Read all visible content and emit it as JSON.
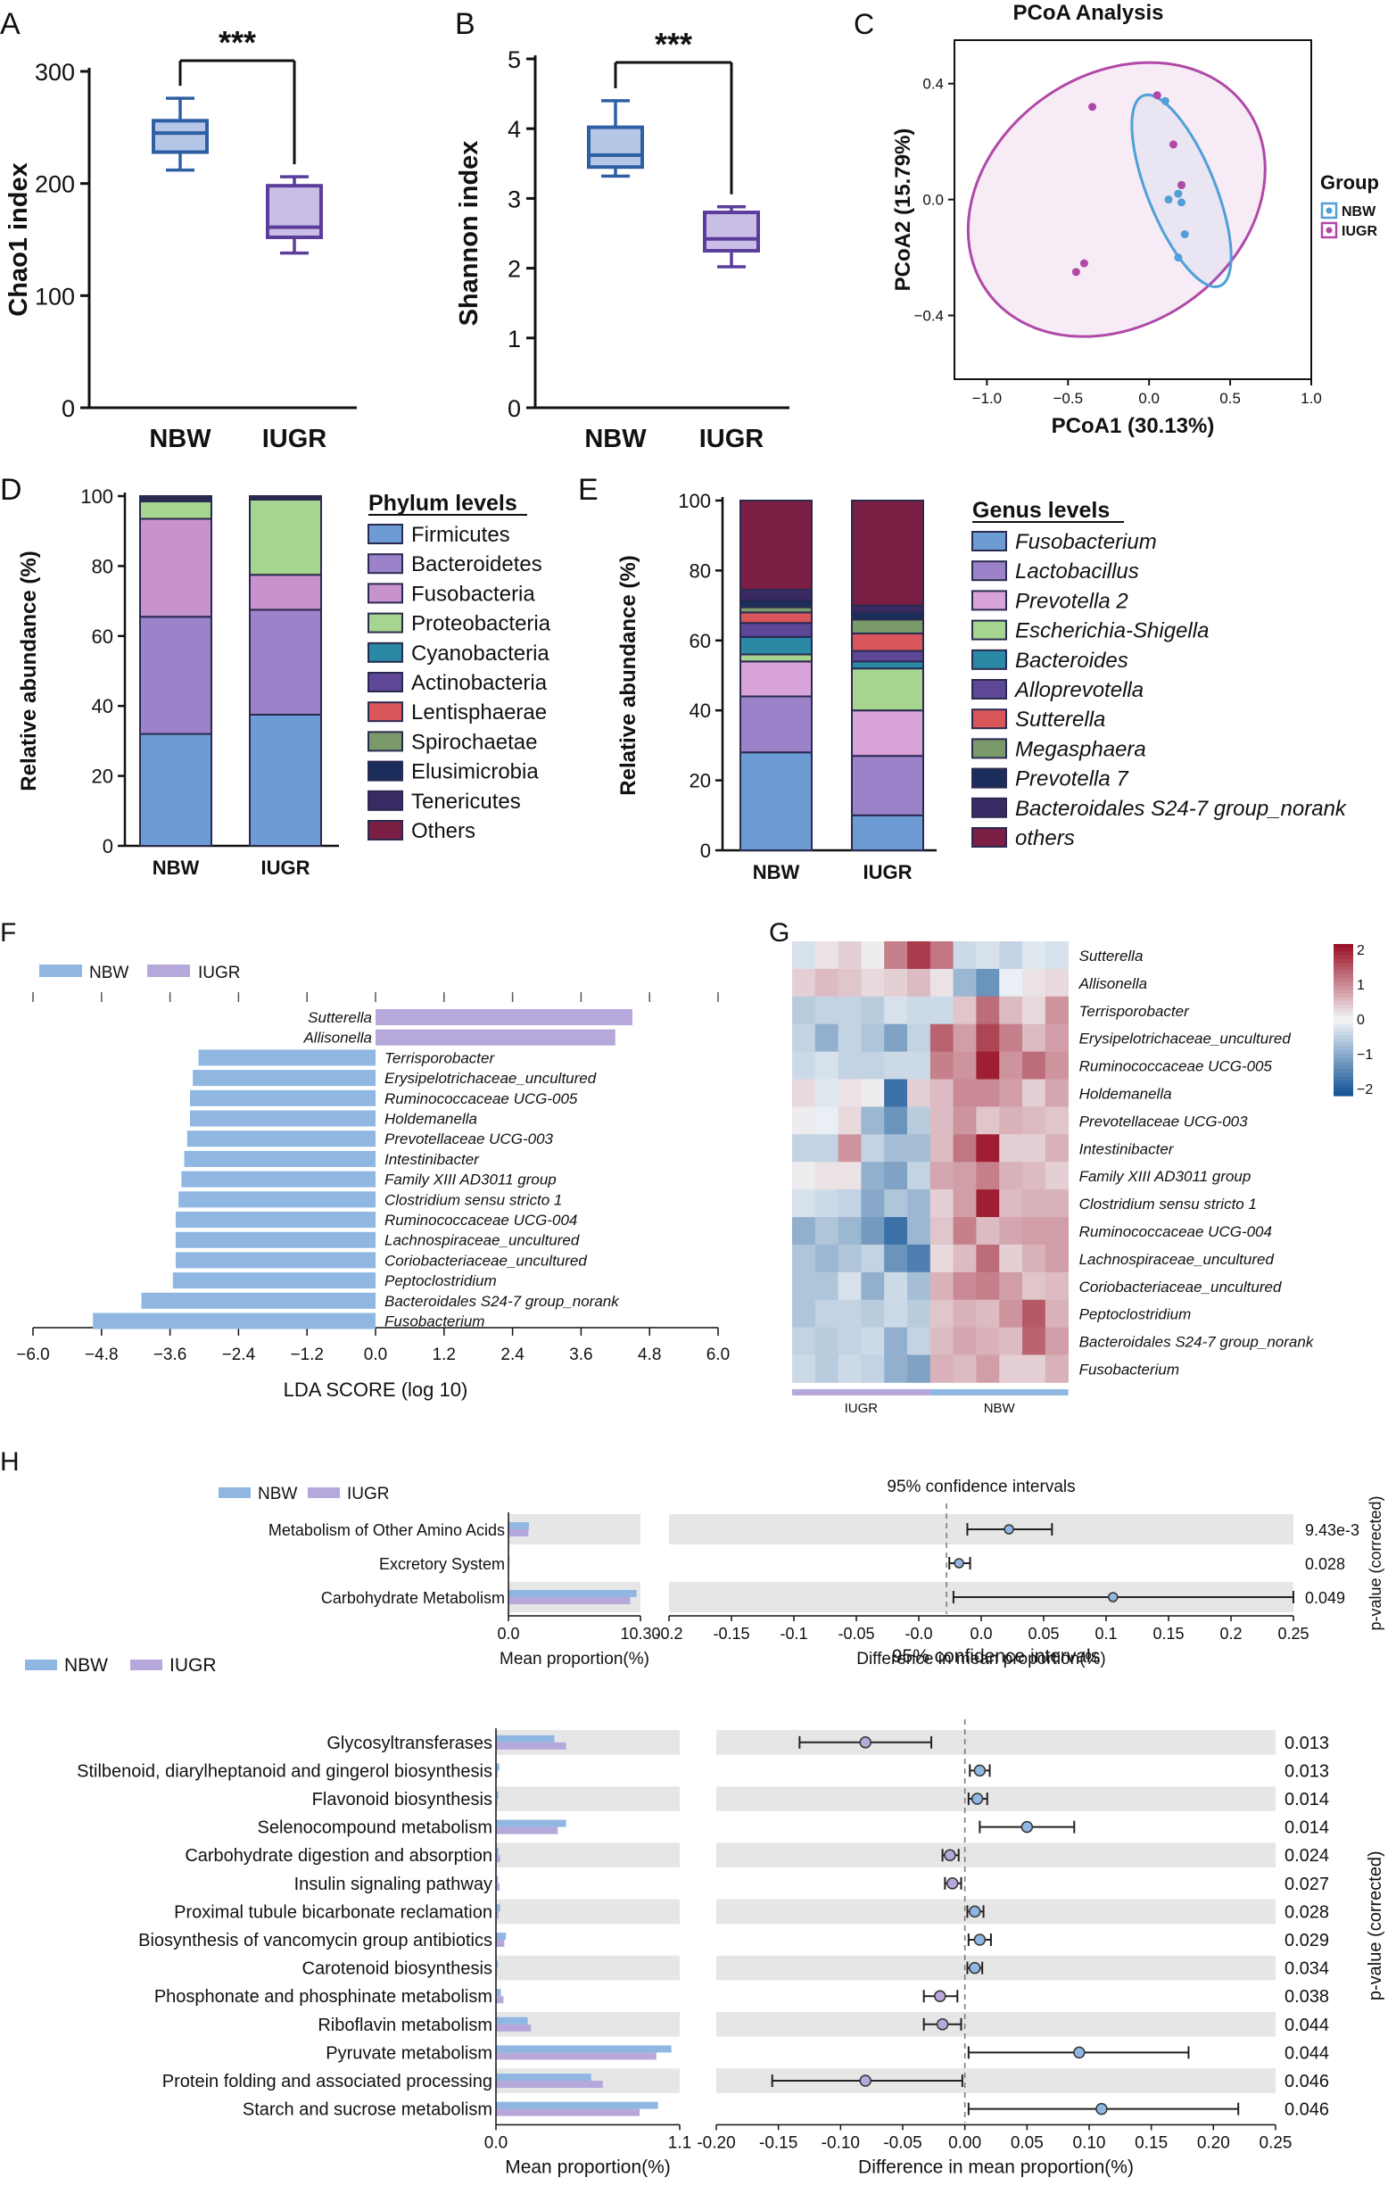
{
  "colors": {
    "nbw_dark": "#2e5fa3",
    "nbw_fill": "#b5c6e6",
    "iugr_dark": "#5b3d9c",
    "iugr_fill": "#c9bfe6",
    "pcoa_nbw": "#4f9fd8",
    "pcoa_iugr": "#b048a8",
    "lefse_nbw": "#8fb7e1",
    "lefse_iugr": "#b7a8db",
    "panel_band": "#e6e6e6"
  },
  "chart_data": [
    {
      "id": "A",
      "type": "boxplot",
      "panel_letter": "A",
      "ylabel": "Chao1 index",
      "ylim": [
        0,
        300
      ],
      "yticks": [
        "0",
        "100",
        "200",
        "300"
      ],
      "categories": [
        "NBW",
        "IUGR"
      ],
      "significance": "***",
      "boxes": [
        {
          "group": "NBW",
          "min": 212,
          "q1": 228,
          "median": 245,
          "q3": 256,
          "max": 276
        },
        {
          "group": "IUGR",
          "min": 138,
          "q1": 152,
          "median": 161,
          "q3": 198,
          "max": 206
        }
      ]
    },
    {
      "id": "B",
      "type": "boxplot",
      "panel_letter": "B",
      "ylabel": "Shannon index",
      "ylim": [
        0,
        5
      ],
      "yticks": [
        "0",
        "1",
        "2",
        "3",
        "4",
        "5"
      ],
      "categories": [
        "NBW",
        "IUGR"
      ],
      "significance": "***",
      "boxes": [
        {
          "group": "NBW",
          "min": 3.32,
          "q1": 3.45,
          "median": 3.62,
          "q3": 4.02,
          "max": 4.4
        },
        {
          "group": "IUGR",
          "min": 2.02,
          "q1": 2.25,
          "median": 2.42,
          "q3": 2.8,
          "max": 2.88
        }
      ]
    },
    {
      "id": "C",
      "type": "scatter",
      "panel_letter": "C",
      "title": "PCoA Analysis",
      "xlabel": "PCoA1 (30.13%)",
      "ylabel": "PCoA2 (15.79%)",
      "xlim": [
        -1.2,
        1.0
      ],
      "ylim": [
        -0.62,
        0.55
      ],
      "xticks": [
        "−1.0",
        "−0.5",
        "0.0",
        "0.5",
        "1.0"
      ],
      "yticks": [
        "0.4",
        "0.0",
        "−0.4"
      ],
      "legend_title": "Group",
      "series": [
        {
          "name": "NBW",
          "points": [
            [
              0.1,
              0.34
            ],
            [
              0.12,
              0.0
            ],
            [
              0.18,
              0.02
            ],
            [
              0.2,
              -0.01
            ],
            [
              0.22,
              -0.12
            ],
            [
              0.18,
              -0.2
            ],
            [
              0.2,
              0.05
            ]
          ]
        },
        {
          "name": "IUGR",
          "points": [
            [
              -0.35,
              0.32
            ],
            [
              0.15,
              0.19
            ],
            [
              0.2,
              0.05
            ],
            [
              -0.45,
              -0.25
            ],
            [
              -0.4,
              -0.22
            ],
            [
              0.05,
              0.36
            ]
          ]
        }
      ]
    },
    {
      "id": "D",
      "type": "stacked-bar",
      "panel_letter": "D",
      "ylabel": "Relative abundance (%)",
      "ylim": [
        0,
        100
      ],
      "yticks": [
        "0",
        "20",
        "40",
        "60",
        "80",
        "100"
      ],
      "categories": [
        "NBW",
        "IUGR"
      ],
      "legend_title": "Phylum levels",
      "series": [
        {
          "name": "Firmicutes",
          "color": "#6d9bd3",
          "values": [
            32,
            37.5
          ]
        },
        {
          "name": "Bacteroidetes",
          "color": "#9c83c9",
          "values": [
            33.5,
            30
          ]
        },
        {
          "name": "Fusobacteria",
          "color": "#c892cf",
          "values": [
            28,
            10
          ]
        },
        {
          "name": "Proteobacteria",
          "color": "#a5d58f",
          "values": [
            5,
            21.5
          ]
        },
        {
          "name": "Cyanobacteria",
          "color": "#2a8aa5",
          "values": [
            0.3,
            0.3
          ]
        },
        {
          "name": "Actinobacteria",
          "color": "#5d4796",
          "values": [
            0.3,
            0.2
          ]
        },
        {
          "name": "Lentisphaerae",
          "color": "#d9565a",
          "values": [
            0.2,
            0.1
          ]
        },
        {
          "name": "Spirochaetae",
          "color": "#7a9a6a",
          "values": [
            0.2,
            0.1
          ]
        },
        {
          "name": "Elusimicrobia",
          "color": "#1b2e5b",
          "values": [
            0.2,
            0.1
          ]
        },
        {
          "name": "Tenericutes",
          "color": "#3a2a63",
          "values": [
            0.2,
            0.1
          ]
        },
        {
          "name": "Others",
          "color": "#7a1e43",
          "values": [
            0.1,
            0.1
          ]
        }
      ]
    },
    {
      "id": "E",
      "type": "stacked-bar",
      "panel_letter": "E",
      "ylabel": "Relative abundance (%)",
      "ylim": [
        0,
        100
      ],
      "yticks": [
        "0",
        "20",
        "40",
        "60",
        "80",
        "100"
      ],
      "categories": [
        "NBW",
        "IUGR"
      ],
      "legend_title": "Genus levels",
      "series": [
        {
          "name": "Fusobacterium",
          "color": "#6d9bd3",
          "values": [
            28,
            10
          ]
        },
        {
          "name": "Lactobacillus",
          "color": "#9c83c9",
          "values": [
            16,
            17
          ]
        },
        {
          "name": "Prevotella 2",
          "color": "#d8a3d8",
          "values": [
            10,
            13
          ]
        },
        {
          "name": "Escherichia-Shigella",
          "color": "#a5d58f",
          "values": [
            2,
            12
          ]
        },
        {
          "name": "Bacteroides",
          "color": "#2a8aa5",
          "values": [
            5,
            2
          ]
        },
        {
          "name": "Alloprevotella",
          "color": "#5d4796",
          "values": [
            4,
            3
          ]
        },
        {
          "name": "Sutterella",
          "color": "#d9565a",
          "values": [
            3,
            5
          ]
        },
        {
          "name": "Megasphaera",
          "color": "#7a9a6a",
          "values": [
            1.5,
            4
          ]
        },
        {
          "name": "Prevotella 7",
          "color": "#1b2e5b",
          "values": [
            2,
            2
          ]
        },
        {
          "name": "Bacteroidales S24-7 group_norank",
          "color": "#3a2a63",
          "values": [
            3,
            2
          ]
        },
        {
          "name": "others",
          "color": "#7a1e43",
          "values": [
            25.5,
            30
          ]
        }
      ]
    },
    {
      "id": "F",
      "type": "bar",
      "panel_letter": "F",
      "xlabel": "LDA SCORE (log 10)",
      "xlim": [
        -6,
        6
      ],
      "xticks": [
        "−6.0",
        "−4.8",
        "−3.6",
        "−2.4",
        "−1.2",
        "0.0",
        "1.2",
        "2.4",
        "3.6",
        "4.8",
        "6.0"
      ],
      "legend": [
        "NBW",
        "IUGR"
      ],
      "bars": [
        {
          "label": "Sutterella",
          "group": "IUGR",
          "value": 4.5
        },
        {
          "label": "Allisonella",
          "group": "IUGR",
          "value": 4.2
        },
        {
          "label": "Terrisporobacter",
          "group": "NBW",
          "value": -3.1
        },
        {
          "label": "Erysipelotrichaceae_uncultured",
          "group": "NBW",
          "value": -3.2
        },
        {
          "label": "Ruminococcaceae UCG-005",
          "group": "NBW",
          "value": -3.25
        },
        {
          "label": "Holdemanella",
          "group": "NBW",
          "value": -3.25
        },
        {
          "label": "Prevotellaceae UCG-003",
          "group": "NBW",
          "value": -3.3
        },
        {
          "label": "Intestinibacter",
          "group": "NBW",
          "value": -3.35
        },
        {
          "label": "Family XIII AD3011 group",
          "group": "NBW",
          "value": -3.4
        },
        {
          "label": "Clostridium sensu stricto 1",
          "group": "NBW",
          "value": -3.45
        },
        {
          "label": "Ruminococcaceae UCG-004",
          "group": "NBW",
          "value": -3.5
        },
        {
          "label": "Lachnospiraceae_uncultured",
          "group": "NBW",
          "value": -3.5
        },
        {
          "label": "Coriobacteriaceae_uncultured",
          "group": "NBW",
          "value": -3.5
        },
        {
          "label": "Peptoclostridium",
          "group": "NBW",
          "value": -3.55
        },
        {
          "label": "Bacteroidales S24-7 group_norank",
          "group": "NBW",
          "value": -4.1
        },
        {
          "label": "Fusobacterium",
          "group": "NBW",
          "value": -4.95
        }
      ]
    },
    {
      "id": "G",
      "type": "heatmap",
      "panel_letter": "G",
      "rows": [
        "Sutterella",
        "Allisonella",
        "Terrisporobacter",
        "Erysipelotrichaceae_uncultured",
        "Ruminococcaceae UCG-005",
        "Holdemanella",
        "Prevotellaceae UCG-003",
        "Intestinibacter",
        "Family XIII AD3011 group",
        "Clostridium sensu stricto 1",
        "Ruminococcaceae UCG-004",
        "Lachnospiraceae_uncultured",
        "Coriobacteriaceae_uncultured",
        "Peptoclostridium",
        "Bacteroidales S24-7 group_norank",
        "Fusobacterium"
      ],
      "column_groups": [
        "IUGR",
        "NBW"
      ],
      "colorbar_ticks": [
        "2",
        "1",
        "0",
        "−1",
        "−2"
      ],
      "values": [
        [
          -0.3,
          0.2,
          0.4,
          0.1,
          1.2,
          1.9,
          1.3,
          -0.4,
          -0.3,
          -0.5,
          -0.2,
          -0.3
        ],
        [
          0.4,
          0.6,
          0.5,
          0.3,
          0.4,
          0.6,
          0.2,
          -0.9,
          -1.4,
          -0.1,
          0.2,
          0.3
        ],
        [
          -0.6,
          -0.5,
          -0.5,
          -0.6,
          -0.3,
          -0.4,
          -0.4,
          0.5,
          1.4,
          0.6,
          0.3,
          1.0
        ],
        [
          -0.5,
          -1.0,
          -0.5,
          -0.7,
          -1.2,
          -0.5,
          1.5,
          0.9,
          1.8,
          1.2,
          0.6,
          0.9
        ],
        [
          -0.4,
          -0.3,
          -0.5,
          -0.5,
          -0.4,
          -0.4,
          1.2,
          1.0,
          2.2,
          1.0,
          1.4,
          1.0
        ],
        [
          0.3,
          -0.2,
          0.2,
          0.1,
          -1.9,
          0.4,
          0.6,
          1.1,
          1.1,
          0.9,
          0.4,
          0.8
        ],
        [
          0.1,
          -0.1,
          0.3,
          -0.9,
          -1.4,
          -0.6,
          0.6,
          1.0,
          0.5,
          0.7,
          0.6,
          0.5
        ],
        [
          -0.5,
          -0.5,
          1.0,
          -0.5,
          -0.8,
          -0.8,
          0.6,
          1.3,
          2.2,
          0.4,
          0.4,
          0.7
        ],
        [
          0.1,
          0.2,
          0.2,
          -1.0,
          -1.2,
          -0.5,
          0.8,
          0.9,
          1.2,
          0.7,
          0.6,
          0.4
        ],
        [
          -0.3,
          -0.4,
          -0.5,
          -1.1,
          -0.7,
          -0.9,
          0.4,
          0.9,
          2.2,
          0.6,
          0.7,
          0.7
        ],
        [
          -1.0,
          -0.7,
          -0.9,
          -1.3,
          -1.9,
          -0.9,
          0.5,
          1.2,
          0.6,
          0.8,
          0.9,
          0.9
        ],
        [
          -0.7,
          -0.9,
          -0.7,
          -0.5,
          -1.4,
          -1.7,
          0.3,
          0.6,
          1.4,
          0.4,
          0.7,
          0.9
        ],
        [
          -0.7,
          -0.7,
          -0.3,
          -1.0,
          -0.4,
          -0.8,
          0.7,
          1.1,
          1.2,
          0.9,
          0.5,
          0.6
        ],
        [
          -0.7,
          -0.5,
          -0.5,
          -0.6,
          -0.4,
          -0.6,
          0.5,
          0.7,
          0.6,
          1.0,
          1.6,
          0.7
        ],
        [
          -0.5,
          -0.6,
          -0.5,
          -0.4,
          -1.0,
          -0.5,
          0.6,
          0.8,
          0.7,
          0.6,
          1.5,
          0.9
        ],
        [
          -0.4,
          -0.6,
          -0.4,
          -0.5,
          -1.0,
          -1.2,
          0.7,
          0.6,
          0.9,
          0.4,
          0.4,
          0.7
        ]
      ]
    },
    {
      "id": "H1",
      "type": "extended-error-bar",
      "panel_letter": "H",
      "legend": [
        "NBW",
        "IUGR"
      ],
      "ci_title": "95% confidence intervals",
      "mean_xlabel": "Mean proportion(%)",
      "diff_xlabel": "Difference in mean proportion(%)",
      "pvalue_label": "p-value (corrected)",
      "mean_xticks": [
        "0.0",
        "10.30"
      ],
      "mean_max": 10.3,
      "diff_xticks": [
        "-0.2",
        "-0.15",
        "-0.1",
        "-0.05",
        "-0.0",
        "0.0",
        "0.05",
        "0.1",
        "0.15",
        "0.2",
        "0.25"
      ],
      "diff_xlim": [
        -0.2,
        0.25
      ],
      "rows": [
        {
          "label": "Metabolism of Other Amino Acids",
          "nbw": 1.6,
          "iugr": 1.55,
          "diff": 0.045,
          "lo": 0.015,
          "hi": 0.076,
          "p": "9.43e-3"
        },
        {
          "label": "Excretory System",
          "nbw": 0.08,
          "iugr": 0.06,
          "diff": 0.009,
          "lo": 0.002,
          "hi": 0.017,
          "p": "0.028"
        },
        {
          "label": "Carbohydrate Metabolism",
          "nbw": 10.0,
          "iugr": 9.5,
          "diff": 0.12,
          "lo": 0.005,
          "hi": 0.25,
          "p": "0.049"
        }
      ]
    },
    {
      "id": "H2",
      "type": "extended-error-bar",
      "legend": [
        "NBW",
        "IUGR"
      ],
      "ci_title": "95% confidence intervals",
      "mean_xlabel": "Mean proportion(%)",
      "diff_xlabel": "Difference in mean proportion(%)",
      "pvalue_label": "p-value (corrected)",
      "mean_xticks": [
        "0.0",
        "1.1"
      ],
      "mean_max": 1.1,
      "diff_xticks": [
        "-0.20",
        "-0.15",
        "-0.10",
        "-0.05",
        "0.00",
        "0.05",
        "0.10",
        "0.15",
        "0.20",
        "0.25"
      ],
      "diff_xlim": [
        -0.2,
        0.25
      ],
      "rows": [
        {
          "label": "Glycosyltransferases",
          "nbw": 0.35,
          "iugr": 0.42,
          "diff": -0.08,
          "lo": -0.133,
          "hi": -0.027,
          "p": "0.013"
        },
        {
          "label": "Stilbenoid, diarylheptanoid and gingerol biosynthesis",
          "nbw": 0.02,
          "iugr": 0.01,
          "diff": 0.012,
          "lo": 0.004,
          "hi": 0.02,
          "p": "0.013"
        },
        {
          "label": "Flavonoid biosynthesis",
          "nbw": 0.015,
          "iugr": 0.008,
          "diff": 0.01,
          "lo": 0.003,
          "hi": 0.018,
          "p": "0.014"
        },
        {
          "label": "Selenocompound metabolism",
          "nbw": 0.42,
          "iugr": 0.37,
          "diff": 0.05,
          "lo": 0.012,
          "hi": 0.088,
          "p": "0.014"
        },
        {
          "label": "Carbohydrate digestion and absorption",
          "nbw": 0.015,
          "iugr": 0.025,
          "diff": -0.012,
          "lo": -0.018,
          "hi": -0.005,
          "p": "0.024"
        },
        {
          "label": "Insulin signaling pathway",
          "nbw": 0.012,
          "iugr": 0.022,
          "diff": -0.01,
          "lo": -0.016,
          "hi": -0.003,
          "p": "0.027"
        },
        {
          "label": "Proximal tubule bicarbonate reclamation",
          "nbw": 0.025,
          "iugr": 0.015,
          "diff": 0.008,
          "lo": 0.002,
          "hi": 0.015,
          "p": "0.028"
        },
        {
          "label": "Biosynthesis of vancomycin group antibiotics",
          "nbw": 0.06,
          "iugr": 0.05,
          "diff": 0.012,
          "lo": 0.003,
          "hi": 0.021,
          "p": "0.029"
        },
        {
          "label": "Carotenoid biosynthesis",
          "nbw": 0.012,
          "iugr": 0.006,
          "diff": 0.008,
          "lo": 0.002,
          "hi": 0.014,
          "p": "0.034"
        },
        {
          "label": "Phosphonate and phosphinate metabolism",
          "nbw": 0.03,
          "iugr": 0.045,
          "diff": -0.02,
          "lo": -0.033,
          "hi": -0.006,
          "p": "0.038"
        },
        {
          "label": "Riboflavin metabolism",
          "nbw": 0.19,
          "iugr": 0.21,
          "diff": -0.018,
          "lo": -0.033,
          "hi": -0.003,
          "p": "0.044"
        },
        {
          "label": "Pyruvate metabolism",
          "nbw": 1.05,
          "iugr": 0.96,
          "diff": 0.092,
          "lo": 0.003,
          "hi": 0.18,
          "p": "0.044"
        },
        {
          "label": "Protein folding and associated processing",
          "nbw": 0.57,
          "iugr": 0.64,
          "diff": -0.08,
          "lo": -0.155,
          "hi": -0.002,
          "p": "0.046"
        },
        {
          "label": "Starch and sucrose metabolism",
          "nbw": 0.97,
          "iugr": 0.86,
          "diff": 0.11,
          "lo": 0.003,
          "hi": 0.22,
          "p": "0.046"
        }
      ]
    }
  ]
}
